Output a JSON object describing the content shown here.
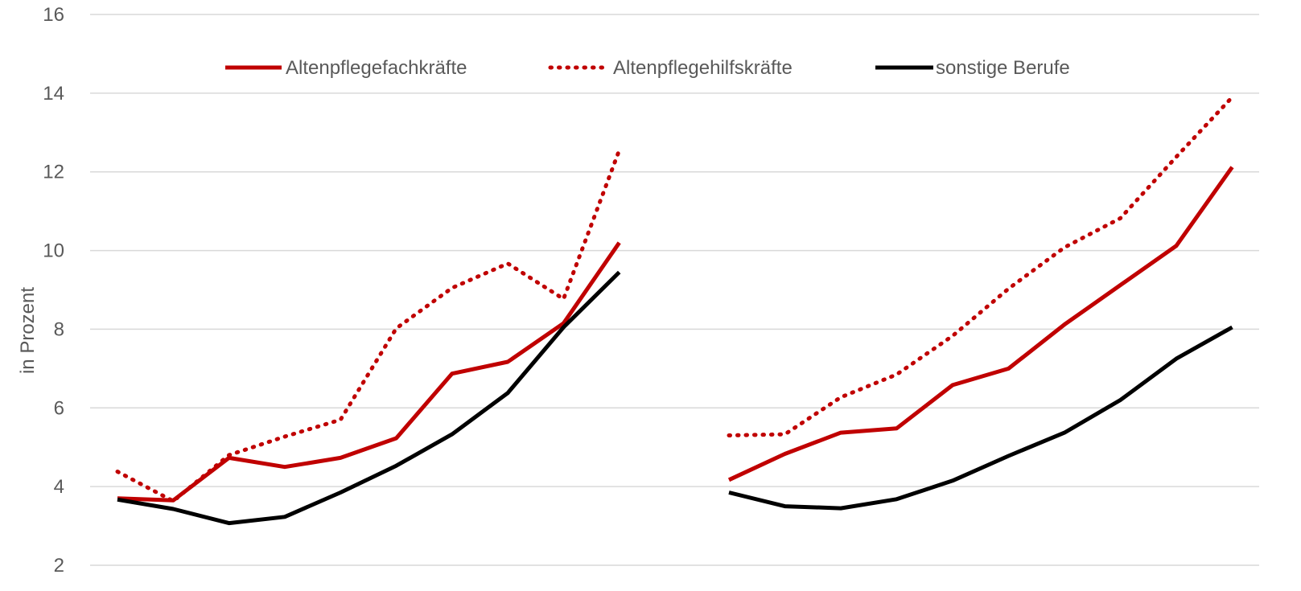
{
  "chart_data": {
    "type": "line",
    "title": "",
    "xlabel": "",
    "ylabel": "in Prozent",
    "ylim": [
      2,
      16
    ],
    "yticks": [
      "2",
      "4",
      "6",
      "8",
      "10",
      "12",
      "14",
      "16"
    ],
    "grid": true,
    "legend_position": "top",
    "groups": 2,
    "series": [
      {
        "name": "Altenpflegefachkräfte",
        "style": "solid",
        "color": "#C00000",
        "group_values": [
          [
            3.7,
            3.65,
            4.73,
            4.5,
            4.73,
            5.23,
            6.87,
            7.17,
            8.15,
            10.2
          ],
          [
            4.17,
            4.83,
            5.37,
            5.48,
            6.58,
            7.0,
            8.12,
            9.12,
            10.12,
            12.12
          ]
        ]
      },
      {
        "name": "Altenpflegehilfskräfte",
        "style": "dotted",
        "color": "#C00000",
        "group_values": [
          [
            4.38,
            3.63,
            4.8,
            5.27,
            5.7,
            8.02,
            9.05,
            9.67,
            8.77,
            12.55
          ],
          [
            5.3,
            5.33,
            6.27,
            6.85,
            7.83,
            9.03,
            10.08,
            10.82,
            12.38,
            13.9
          ]
        ]
      },
      {
        "name": "sonstige Berufe",
        "style": "solid",
        "color": "#000000",
        "group_values": [
          [
            3.67,
            3.43,
            3.07,
            3.23,
            3.85,
            4.53,
            5.33,
            6.38,
            8.05,
            9.45
          ],
          [
            3.85,
            3.5,
            3.45,
            3.68,
            4.15,
            4.78,
            5.37,
            6.2,
            7.25,
            8.05
          ]
        ]
      }
    ]
  }
}
